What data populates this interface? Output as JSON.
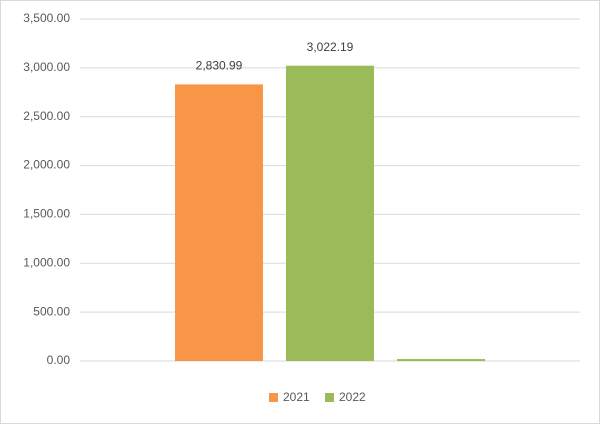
{
  "chart_data": {
    "type": "bar",
    "categories": [
      null
    ],
    "series": [
      {
        "name": "2021",
        "color": "#f79646",
        "values": [
          2830.99
        ],
        "value_labels": [
          "2,830.99"
        ]
      },
      {
        "name": "2022",
        "color": "#9bbb59",
        "values": [
          3022.19
        ],
        "value_labels": [
          "3,022.19"
        ]
      },
      {
        "color": "#9bbb59",
        "values": [
          20
        ]
      }
    ],
    "ylim": [
      0,
      3500
    ],
    "yticks": [
      {
        "value": 0,
        "label": "0.00"
      },
      {
        "value": 500,
        "label": "500.00"
      },
      {
        "value": 1000,
        "label": "1,000.00"
      },
      {
        "value": 1500,
        "label": "1,500.00"
      },
      {
        "value": 2000,
        "label": "2,000.00"
      },
      {
        "value": 2500,
        "label": "2,500.00"
      },
      {
        "value": 3000,
        "label": "3,000.00"
      },
      {
        "value": 3500,
        "label": "3,500.00"
      }
    ],
    "grid": true,
    "legend": "bottom"
  }
}
